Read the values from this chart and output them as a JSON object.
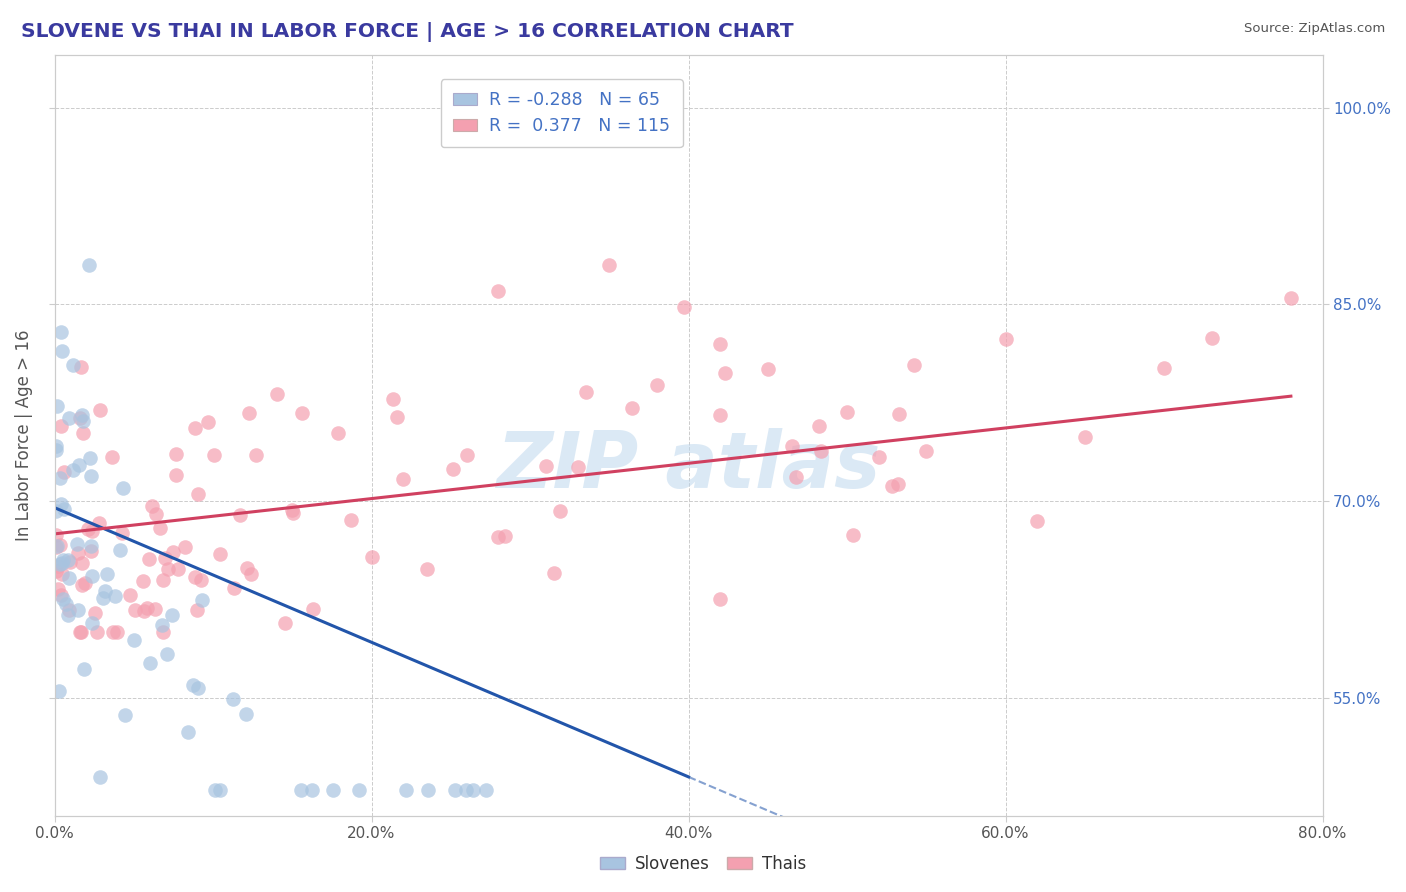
{
  "title": "SLOVENE VS THAI IN LABOR FORCE | AGE > 16 CORRELATION CHART",
  "title_color": "#3a3a9f",
  "source_text": "Source: ZipAtlas.com",
  "ylabel": "In Labor Force | Age > 16",
  "legend_labels": [
    "Slovenes",
    "Thais"
  ],
  "legend_r": [
    -0.288,
    0.377
  ],
  "legend_n": [
    65,
    115
  ],
  "slovene_color": "#a8c4e0",
  "thai_color": "#f4a0b0",
  "slovene_line_color": "#2255aa",
  "thai_line_color": "#d04060",
  "xlim": [
    0.0,
    0.8
  ],
  "ylim": [
    0.46,
    1.04
  ],
  "xtick_vals": [
    0.0,
    0.2,
    0.4,
    0.6,
    0.8
  ],
  "xtick_labels": [
    "0.0%",
    "20.0%",
    "40.0%",
    "60.0%",
    "80.0%"
  ],
  "ytick_vals": [
    0.55,
    0.7,
    0.85,
    1.0
  ],
  "ytick_labels": [
    "55.0%",
    "70.0%",
    "85.0%",
    "100.0%"
  ],
  "background_color": "#ffffff",
  "grid_color": "#cccccc",
  "watermark_color": "#b8d4ec",
  "axis_color": "#555555",
  "tick_label_color": "#4472c4"
}
